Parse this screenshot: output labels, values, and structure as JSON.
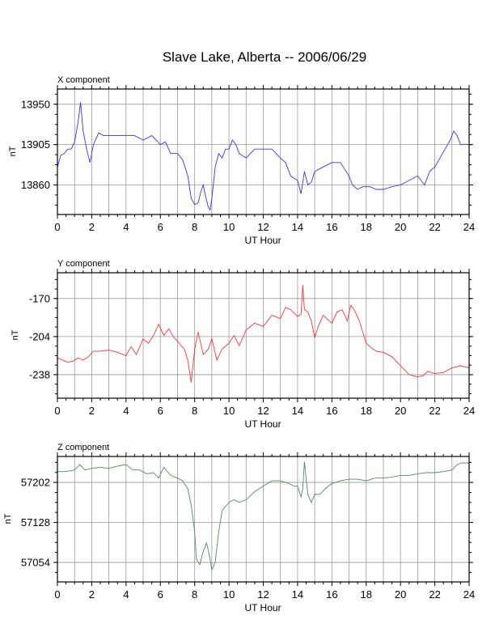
{
  "title": "Slave Lake, Alberta -- 2006/06/29",
  "chart_data": [
    {
      "type": "line",
      "title": "X component",
      "xlabel": "UT Hour",
      "ylabel": "nT",
      "xlim": [
        0,
        24
      ],
      "ylim": [
        13827,
        13967
      ],
      "xticks": [
        "0",
        "2",
        "4",
        "6",
        "8",
        "10",
        "12",
        "14",
        "16",
        "18",
        "20",
        "22",
        "24"
      ],
      "yticks": [
        13860,
        13905,
        13950
      ],
      "grid": true,
      "color": "#3333ff",
      "series": [
        {
          "x": [
            0,
            0.2,
            0.4,
            0.6,
            0.8,
            1.0,
            1.2,
            1.35,
            1.5,
            1.7,
            1.9,
            2.1,
            2.4,
            2.7,
            3.0,
            3.3,
            3.6,
            4.0,
            4.5,
            5.0,
            5.5,
            6.0,
            6.3,
            6.6,
            7.0,
            7.3,
            7.6,
            7.8,
            8.0,
            8.2,
            8.4,
            8.5,
            8.6,
            8.8,
            8.9,
            9.0,
            9.2,
            9.4,
            9.6,
            9.8,
            10.0,
            10.2,
            10.4,
            10.6,
            11.0,
            11.5,
            12.0,
            12.5,
            13.0,
            13.3,
            13.6,
            14.0,
            14.2,
            14.4,
            14.6,
            14.8,
            15.0,
            15.5,
            16.0,
            16.5,
            17.0,
            17.2,
            17.5,
            17.8,
            18.2,
            18.6,
            19.0,
            19.5,
            20.0,
            20.5,
            21.0,
            21.4,
            21.7,
            22.0,
            22.3,
            22.6,
            22.9,
            23.1,
            23.3,
            23.5,
            23.7,
            24.0
          ],
          "y": [
            13880,
            13893,
            13895,
            13900,
            13900,
            13908,
            13930,
            13952,
            13920,
            13900,
            13885,
            13905,
            13918,
            13915,
            13915,
            13915,
            13915,
            13915,
            13915,
            13910,
            13915,
            13905,
            13908,
            13895,
            13895,
            13888,
            13870,
            13845,
            13838,
            13840,
            13855,
            13860,
            13850,
            13835,
            13832,
            13845,
            13880,
            13895,
            13890,
            13900,
            13900,
            13910,
            13905,
            13895,
            13890,
            13900,
            13900,
            13900,
            13890,
            13885,
            13870,
            13865,
            13850,
            13875,
            13860,
            13863,
            13875,
            13880,
            13885,
            13885,
            13870,
            13860,
            13855,
            13858,
            13858,
            13855,
            13855,
            13858,
            13860,
            13865,
            13870,
            13860,
            13875,
            13880,
            13890,
            13900,
            13910,
            13920,
            13915,
            13905,
            13905,
            13905
          ]
        }
      ]
    },
    {
      "type": "line",
      "title": "Y component",
      "xlabel": "UT Hour",
      "ylabel": "nT",
      "xlim": [
        0,
        24
      ],
      "ylim": [
        -259,
        -147
      ],
      "xticks": [
        "0",
        "2",
        "4",
        "6",
        "8",
        "10",
        "12",
        "14",
        "16",
        "18",
        "20",
        "22",
        "24"
      ],
      "yticks": [
        -238,
        -204,
        -170
      ],
      "grid": true,
      "color": "#ff3333",
      "series": [
        {
          "x": [
            0,
            0.3,
            0.6,
            0.9,
            1.2,
            1.5,
            1.8,
            2.1,
            2.5,
            3.0,
            3.5,
            4.0,
            4.3,
            4.6,
            5.0,
            5.3,
            5.6,
            5.9,
            6.2,
            6.5,
            6.8,
            7.0,
            7.2,
            7.4,
            7.6,
            7.7,
            7.8,
            8.0,
            8.2,
            8.5,
            8.8,
            9.0,
            9.3,
            9.6,
            10.0,
            10.3,
            10.6,
            11.0,
            11.5,
            12.0,
            12.5,
            13.0,
            13.3,
            13.6,
            14.0,
            14.2,
            14.3,
            14.4,
            14.6,
            14.8,
            15.0,
            15.2,
            15.5,
            16.0,
            16.3,
            16.6,
            16.9,
            17.1,
            17.3,
            17.6,
            18.0,
            18.3,
            18.6,
            19.0,
            19.5,
            20.0,
            20.5,
            21.0,
            21.3,
            21.6,
            22.0,
            22.5,
            23.0,
            23.5,
            24.0
          ],
          "y": [
            -223,
            -225,
            -227,
            -226,
            -223,
            -225,
            -222,
            -217,
            -217,
            -216,
            -218,
            -221,
            -213,
            -220,
            -206,
            -210,
            -203,
            -193,
            -203,
            -197,
            -205,
            -208,
            -212,
            -215,
            -225,
            -235,
            -245,
            -215,
            -200,
            -220,
            -215,
            -206,
            -225,
            -215,
            -210,
            -203,
            -212,
            -198,
            -192,
            -195,
            -185,
            -188,
            -178,
            -180,
            -186,
            -184,
            -158,
            -180,
            -182,
            -190,
            -205,
            -195,
            -185,
            -192,
            -182,
            -180,
            -190,
            -176,
            -180,
            -190,
            -210,
            -214,
            -217,
            -218,
            -222,
            -230,
            -238,
            -240,
            -239,
            -235,
            -237,
            -236,
            -232,
            -230,
            -232
          ]
        }
      ]
    },
    {
      "type": "line",
      "title": "Z component",
      "xlabel": "UT Hour",
      "ylabel": "nT",
      "xlim": [
        0,
        24
      ],
      "ylim": [
        57018,
        57250
      ],
      "xticks": [
        "0",
        "2",
        "4",
        "6",
        "8",
        "10",
        "12",
        "14",
        "16",
        "18",
        "20",
        "22",
        "24"
      ],
      "yticks": [
        57054,
        57128,
        57202
      ],
      "grid": true,
      "color": "#558866",
      "series": [
        {
          "x": [
            0,
            0.5,
            1.0,
            1.3,
            1.6,
            2.0,
            2.5,
            3.0,
            3.5,
            4.0,
            4.4,
            4.8,
            5.2,
            5.6,
            5.9,
            6.2,
            6.6,
            7.0,
            7.3,
            7.6,
            7.8,
            8.0,
            8.1,
            8.3,
            8.5,
            8.7,
            8.9,
            9.0,
            9.2,
            9.4,
            9.6,
            10.0,
            10.3,
            10.6,
            11.0,
            11.5,
            12.0,
            12.5,
            13.0,
            13.5,
            13.8,
            14.0,
            14.2,
            14.3,
            14.4,
            14.6,
            14.8,
            15.0,
            15.3,
            15.6,
            16.0,
            16.5,
            17.0,
            17.5,
            18.0,
            18.5,
            19.0,
            19.5,
            20.0,
            20.5,
            21.0,
            21.5,
            22.0,
            22.5,
            23.0,
            23.3,
            23.6,
            24.0
          ],
          "y": [
            57222,
            57222,
            57225,
            57235,
            57225,
            57228,
            57230,
            57228,
            57232,
            57235,
            57225,
            57225,
            57218,
            57220,
            57210,
            57230,
            57215,
            57210,
            57205,
            57190,
            57160,
            57110,
            57060,
            57050,
            57075,
            57090,
            57060,
            57040,
            57055,
            57110,
            57150,
            57165,
            57170,
            57165,
            57170,
            57185,
            57195,
            57205,
            57205,
            57200,
            57195,
            57195,
            57175,
            57190,
            57240,
            57180,
            57165,
            57180,
            57180,
            57190,
            57200,
            57205,
            57208,
            57208,
            57205,
            57210,
            57210,
            57212,
            57215,
            57215,
            57218,
            57220,
            57220,
            57222,
            57225,
            57235,
            57238,
            57238
          ]
        }
      ]
    }
  ]
}
